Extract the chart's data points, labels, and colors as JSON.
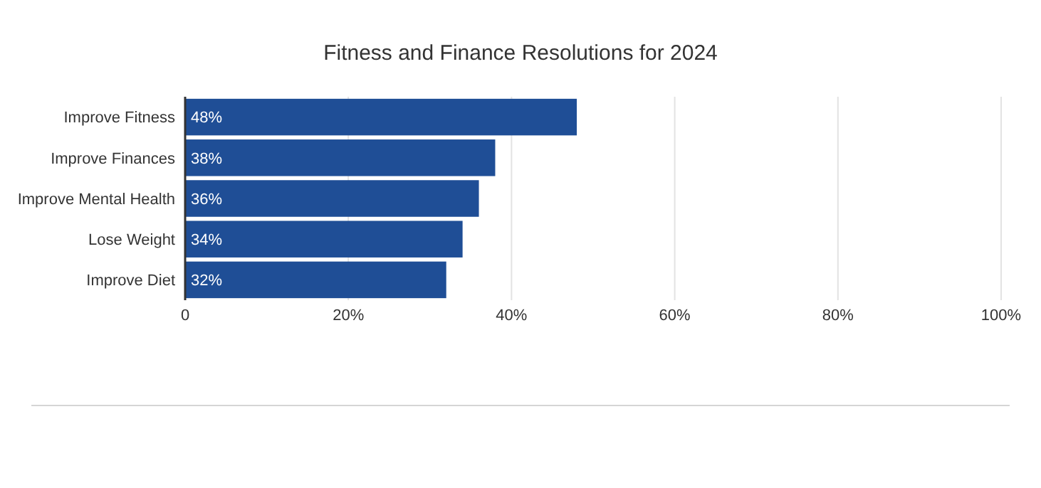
{
  "chart_data": {
    "type": "bar",
    "orientation": "horizontal",
    "title": "Fitness and Finance Resolutions for 2024",
    "categories": [
      "Improve Fitness",
      "Improve Finances",
      "Improve Mental Health",
      "Lose Weight",
      "Improve Diet"
    ],
    "values": [
      48,
      38,
      36,
      34,
      32
    ],
    "value_labels": [
      "48%",
      "38%",
      "36%",
      "34%",
      "32%"
    ],
    "color": "#1f4e96",
    "xlim": [
      0,
      100
    ],
    "xticks": [
      {
        "value": 0,
        "label": "0"
      },
      {
        "value": 20,
        "label": "20%"
      },
      {
        "value": 40,
        "label": "40%"
      },
      {
        "value": 60,
        "label": "60%"
      },
      {
        "value": 80,
        "label": "80%"
      },
      {
        "value": 100,
        "label": "100%"
      }
    ],
    "grid": "x"
  }
}
